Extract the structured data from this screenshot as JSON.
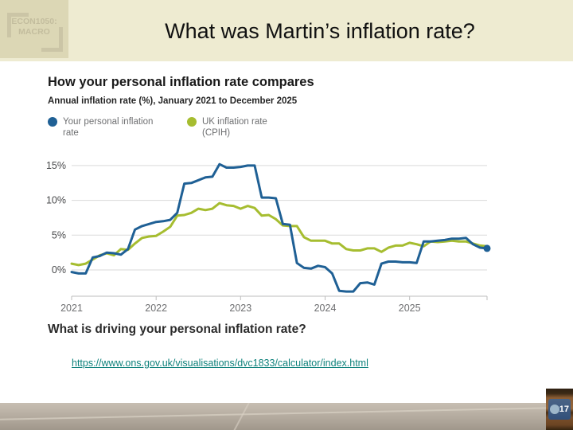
{
  "slide": {
    "logo_line1": "ECON1050:",
    "logo_line2": "MACRO",
    "title": "What was Martin’s inflation rate?",
    "page_number": "17"
  },
  "chart": {
    "title": "How your personal inflation rate compares",
    "subtitle": "Annual inflation rate (%), January 2021 to December 2025",
    "legend": [
      {
        "label": "Your personal inflation rate",
        "color": "#1f6095"
      },
      {
        "label": "UK inflation rate (CPIH)",
        "color": "#a6bd30"
      }
    ]
  },
  "chart_data": {
    "type": "line",
    "title": "How your personal inflation rate compares",
    "subtitle": "Annual inflation rate (%), January 2021 to December 2025",
    "xlabel": "",
    "ylabel": "Annual inflation rate (%)",
    "x_unit": "month",
    "x_range": [
      "2021-01",
      "2025-12"
    ],
    "ylim": [
      -3.7,
      16.7
    ],
    "grid": true,
    "legend_position": "top",
    "x_ticks": [
      {
        "label": "2021",
        "index": 0
      },
      {
        "label": "2022",
        "index": 12
      },
      {
        "label": "2023",
        "index": 24
      },
      {
        "label": "2024",
        "index": 36
      },
      {
        "label": "2025",
        "index": 48
      }
    ],
    "y_ticks": [
      {
        "label": "0%",
        "value": 0
      },
      {
        "label": "5%",
        "value": 5
      },
      {
        "label": "10%",
        "value": 10
      },
      {
        "label": "15%",
        "value": 15
      }
    ],
    "series": [
      {
        "name": "UK inflation rate (CPIH)",
        "color": "#a6bd30",
        "end_marker": false,
        "values": [
          0.9,
          0.7,
          0.9,
          1.5,
          2.1,
          2.4,
          2.1,
          3.0,
          2.9,
          3.8,
          4.6,
          4.8,
          4.9,
          5.5,
          6.2,
          7.8,
          7.9,
          8.2,
          8.8,
          8.6,
          8.8,
          9.6,
          9.3,
          9.2,
          8.8,
          9.2,
          8.9,
          7.8,
          7.9,
          7.3,
          6.4,
          6.3,
          6.3,
          4.7,
          4.2,
          4.2,
          4.2,
          3.8,
          3.8,
          3.0,
          2.8,
          2.8,
          3.1,
          3.1,
          2.6,
          3.2,
          3.5,
          3.5,
          3.9,
          3.7,
          3.4,
          4.1,
          4.0,
          4.1,
          4.2,
          4.1,
          4.1,
          3.8,
          3.5,
          3.4
        ]
      },
      {
        "name": "Your personal inflation rate",
        "color": "#1f6095",
        "end_marker": true,
        "values": [
          -0.3,
          -0.5,
          -0.5,
          1.8,
          2.0,
          2.5,
          2.4,
          2.2,
          3.0,
          5.8,
          6.3,
          6.6,
          6.9,
          7.0,
          7.2,
          8.2,
          12.4,
          12.5,
          12.9,
          13.3,
          13.4,
          15.2,
          14.7,
          14.7,
          14.8,
          15.0,
          15.0,
          10.4,
          10.4,
          10.3,
          6.6,
          6.5,
          1.0,
          0.3,
          0.2,
          0.6,
          0.4,
          -0.5,
          -3.0,
          -3.1,
          -3.1,
          -1.9,
          -1.8,
          -2.1,
          0.9,
          1.2,
          1.2,
          1.1,
          1.1,
          1.0,
          4.1,
          4.1,
          4.2,
          4.3,
          4.5,
          4.5,
          4.6,
          3.7,
          3.2,
          3.1
        ]
      }
    ]
  },
  "sections": {
    "driving_heading": "What is driving your personal inflation rate?",
    "link_text": "https://www.ons.gov.uk/visualisations/dvc1833/calculator/index.html",
    "link_href": "https://www.ons.gov.uk/visualisations/dvc1833/calculator/index.html"
  }
}
